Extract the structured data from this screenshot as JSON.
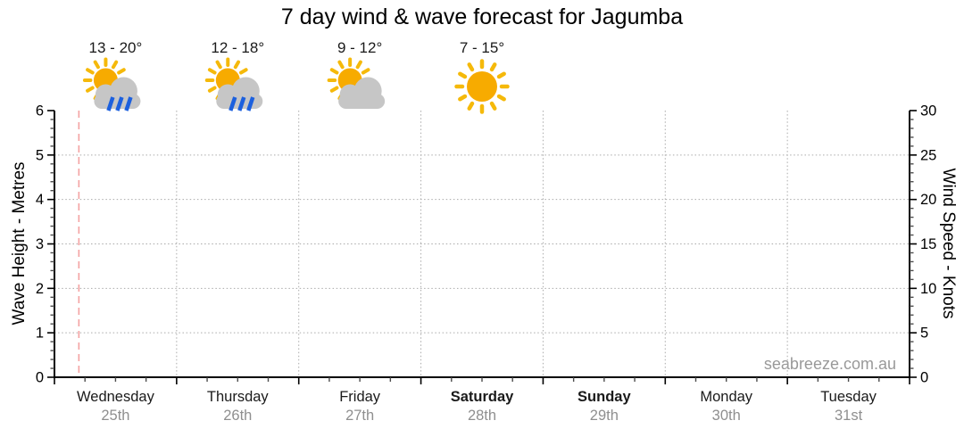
{
  "title": "7 day wind & wave forecast for Jagumba",
  "watermark": "seabreeze.com.au",
  "colors": {
    "sun_body": "#F7AB00",
    "sun_rays": "#F5B90A",
    "cloud": "#C6C6C6",
    "rain": "#1C60DE",
    "grid": "#AAAAAA",
    "axis": "#000000",
    "minor_tick": "#4D4D4D",
    "now_line": "#F4A2A2",
    "day_name": "#1A1A1A",
    "day_date": "#8F8F8F",
    "temp_text": "#1A1A1A"
  },
  "chart_data": {
    "type": "line",
    "title": "7 day wind & wave forecast for Jagumba",
    "grid_on": true,
    "note": "Forecast chart frame is empty - no wind or wave series plotted",
    "series": [],
    "x_axis": {
      "minor_ticks_per_day": 4,
      "days": [
        {
          "name": "Wednesday",
          "date": "25th",
          "weekend": false,
          "temp": "13 - 20°",
          "icon": "sun-cloud-rain"
        },
        {
          "name": "Thursday",
          "date": "26th",
          "weekend": false,
          "temp": "12 - 18°",
          "icon": "sun-cloud-rain"
        },
        {
          "name": "Friday",
          "date": "27th",
          "weekend": false,
          "temp": "9 - 12°",
          "icon": "sun-cloud"
        },
        {
          "name": "Saturday",
          "date": "28th",
          "weekend": true,
          "temp": "7 - 15°",
          "icon": "sun"
        },
        {
          "name": "Sunday",
          "date": "29th",
          "weekend": true,
          "temp": null,
          "icon": null
        },
        {
          "name": "Monday",
          "date": "30th",
          "weekend": false,
          "temp": null,
          "icon": null
        },
        {
          "name": "Tuesday",
          "date": "31st",
          "weekend": false,
          "temp": null,
          "icon": null
        }
      ]
    },
    "left_axis": {
      "label": "Wave Height - Metres",
      "min": 0,
      "max": 6,
      "major_step": 1,
      "minor_step": 0.2,
      "tick_labels": [
        0,
        1,
        2,
        3,
        4,
        5,
        6
      ],
      "gridlines": [
        1,
        2,
        3,
        4,
        5
      ]
    },
    "right_axis": {
      "label": "Wind Speed - Knots",
      "min": 0,
      "max": 30,
      "major_step": 5,
      "minor_step": 1,
      "tick_labels": [
        0,
        5,
        10,
        15,
        20,
        25,
        30
      ],
      "gridlines": [
        5,
        10,
        15,
        20,
        25
      ]
    },
    "now_line": {
      "day_index": 0,
      "day_fraction": 0.2
    }
  }
}
